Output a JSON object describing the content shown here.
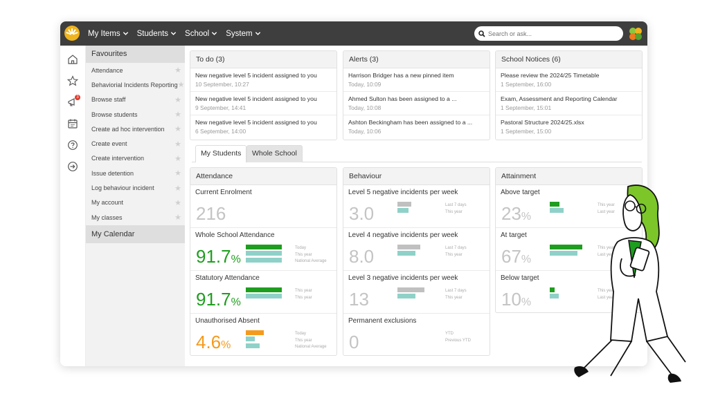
{
  "nav": {
    "items": [
      "My Items",
      "Students",
      "School",
      "System"
    ],
    "search_placeholder": "Search or ask..."
  },
  "favourites": {
    "title": "Favourites",
    "items": [
      "Attendance",
      "Behaviorial Incidents Reporting",
      "Browse staff",
      "Browse students",
      "Create ad hoc intervention",
      "Create event",
      "Create intervention",
      "Issue detention",
      "Log behaviour incident",
      "My account",
      "My classes"
    ],
    "calendar_title": "My Calendar"
  },
  "notifications_badge": "3",
  "todo": {
    "title": "To do (3)",
    "items": [
      {
        "title": "New negative level 5 incident assigned to you",
        "time": "10 September, 10:27"
      },
      {
        "title": "New negative level 5 incident assigned to you",
        "time": "9 September, 14:41"
      },
      {
        "title": "New negative level 5 incident assigned to you",
        "time": "6 September, 14:00"
      }
    ]
  },
  "alerts": {
    "title": "Alerts (3)",
    "items": [
      {
        "title": "Harrison Bridger has a new pinned item",
        "time": "Today, 10:09"
      },
      {
        "title": "Ahmed Sulton has been assigned to a ...",
        "time": "Today, 10:08"
      },
      {
        "title": "Ashton Beckingham has been assigned to a ...",
        "time": "Today, 10:06"
      }
    ]
  },
  "notices": {
    "title": "School Notices (6)",
    "items": [
      {
        "title": "Please review the 2024/25 Timetable",
        "time": "1 September, 16:00"
      },
      {
        "title": "Exam, Assessment and Reporting Calendar",
        "time": "1 September, 15:01"
      },
      {
        "title": "Pastoral Structure 2024/25.xlsx",
        "time": "1 September, 15:00"
      }
    ]
  },
  "tabs": [
    "My Students",
    "Whole School"
  ],
  "attendance": {
    "title": "Attendance",
    "rows": [
      {
        "label": "Current Enrolment",
        "value": "216",
        "unit": "",
        "bars": [],
        "legend": []
      },
      {
        "label": "Whole School Attendance",
        "value": "91.7",
        "unit": "%",
        "legend": [
          "Today",
          "This year",
          "National Average"
        ]
      },
      {
        "label": "Statutory Attendance",
        "value": "91.7",
        "unit": "%",
        "legend": [
          "This year",
          "This year"
        ]
      },
      {
        "label": "Unauthorised Absent",
        "value": "4.6",
        "unit": "%",
        "legend": [
          "Today",
          "This year",
          "National Average"
        ]
      }
    ]
  },
  "behaviour": {
    "title": "Behaviour",
    "rows": [
      {
        "label": "Level 5 negative incidents per week",
        "value": "3.0",
        "legend": [
          "Last 7 days",
          "This year"
        ]
      },
      {
        "label": "Level 4 negative incidents per week",
        "value": "8.0",
        "legend": [
          "Last 7 days",
          "This year"
        ]
      },
      {
        "label": "Level 3 negative incidents per week",
        "value": "13",
        "legend": [
          "Last 7 days",
          "This year"
        ]
      },
      {
        "label": "Permanent exclusions",
        "value": "0",
        "legend": [
          "YTD",
          "Previous YTD"
        ]
      }
    ]
  },
  "attainment": {
    "title": "Attainment",
    "rows": [
      {
        "label": "Above target",
        "value": "23",
        "unit": "%",
        "legend": [
          "This year",
          "Last year"
        ]
      },
      {
        "label": "At target",
        "value": "67",
        "unit": "%",
        "legend": [
          "This year",
          "Last year"
        ]
      },
      {
        "label": "Below target",
        "value": "10",
        "unit": "%",
        "legend": [
          "This year",
          "Last year"
        ]
      }
    ]
  },
  "colors": {
    "topbar": "#3e3e3e",
    "green": "#1e9e1e",
    "teal": "#8fd1c8",
    "orange": "#f59a1c",
    "grey_bar": "#c0c0c0"
  }
}
